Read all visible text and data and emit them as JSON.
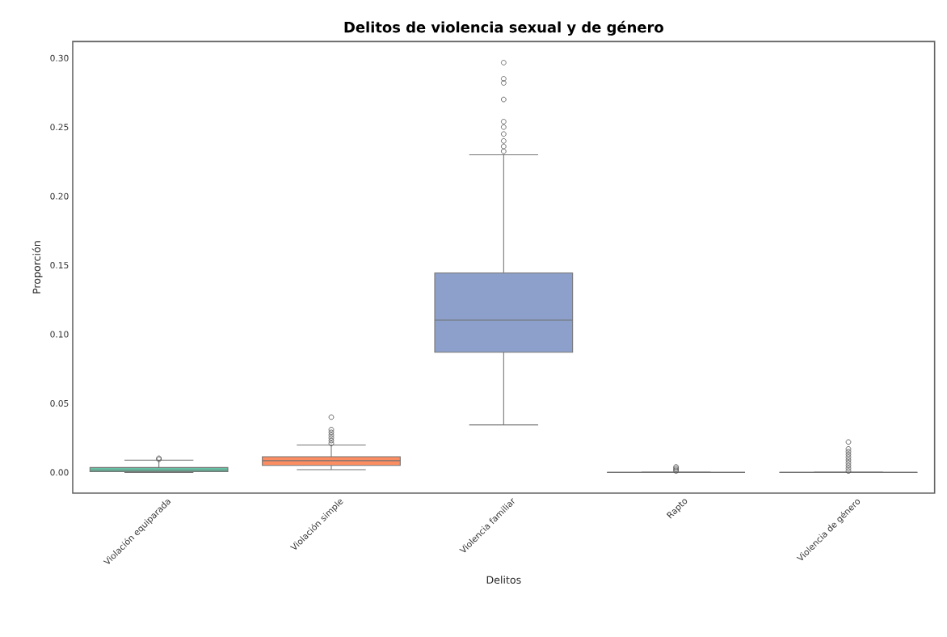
{
  "chart_data": {
    "type": "box",
    "title": "Delitos de violencia sexual y de género",
    "xlabel": "Delitos",
    "ylabel": "Proporción",
    "categories": [
      "Violación equiparada",
      "Violación simple",
      "Violencia familiar",
      "Rapto",
      "Violencia de género"
    ],
    "colors": [
      "#66c2a5",
      "#fc8d62",
      "#8da0cb",
      null,
      null
    ],
    "boxes": [
      {
        "low": 0.0,
        "q1": 0.0005,
        "median": 0.0015,
        "q3": 0.0035,
        "high": 0.0088,
        "outliers": [
          0.0095,
          0.0102
        ]
      },
      {
        "low": 0.002,
        "q1": 0.005,
        "median": 0.0085,
        "q3": 0.0113,
        "high": 0.0198,
        "outliers": [
          0.021,
          0.023,
          0.025,
          0.027,
          0.029,
          0.031,
          0.04
        ]
      },
      {
        "low": 0.0344,
        "q1": 0.087,
        "median": 0.1103,
        "q3": 0.1444,
        "high": 0.23,
        "outliers": [
          0.2325,
          0.236,
          0.24,
          0.245,
          0.25,
          0.254,
          0.27,
          0.282,
          0.285,
          0.2967
        ]
      },
      {
        "low": 0.0,
        "q1": 0.0,
        "median": 0.0,
        "q3": 0.0,
        "high": 0.0,
        "outliers": [
          0.001,
          0.002,
          0.003,
          0.004
        ]
      },
      {
        "low": 0.0,
        "q1": 0.0,
        "median": 0.0,
        "q3": 0.0,
        "high": 0.0,
        "outliers": [
          0.001,
          0.003,
          0.005,
          0.007,
          0.009,
          0.011,
          0.013,
          0.015,
          0.017,
          0.022
        ]
      }
    ],
    "ylim": [
      -0.015,
      0.312
    ],
    "yticks": [
      {
        "value": 0,
        "label": "0.00"
      },
      {
        "value": 0.05,
        "label": "0.05"
      },
      {
        "value": 0.1,
        "label": "0.10"
      },
      {
        "value": 0.15,
        "label": "0.15"
      },
      {
        "value": 0.2,
        "label": "0.20"
      },
      {
        "value": 0.25,
        "label": "0.25"
      },
      {
        "value": 0.3,
        "label": "0.30"
      }
    ],
    "marker": "circle"
  }
}
